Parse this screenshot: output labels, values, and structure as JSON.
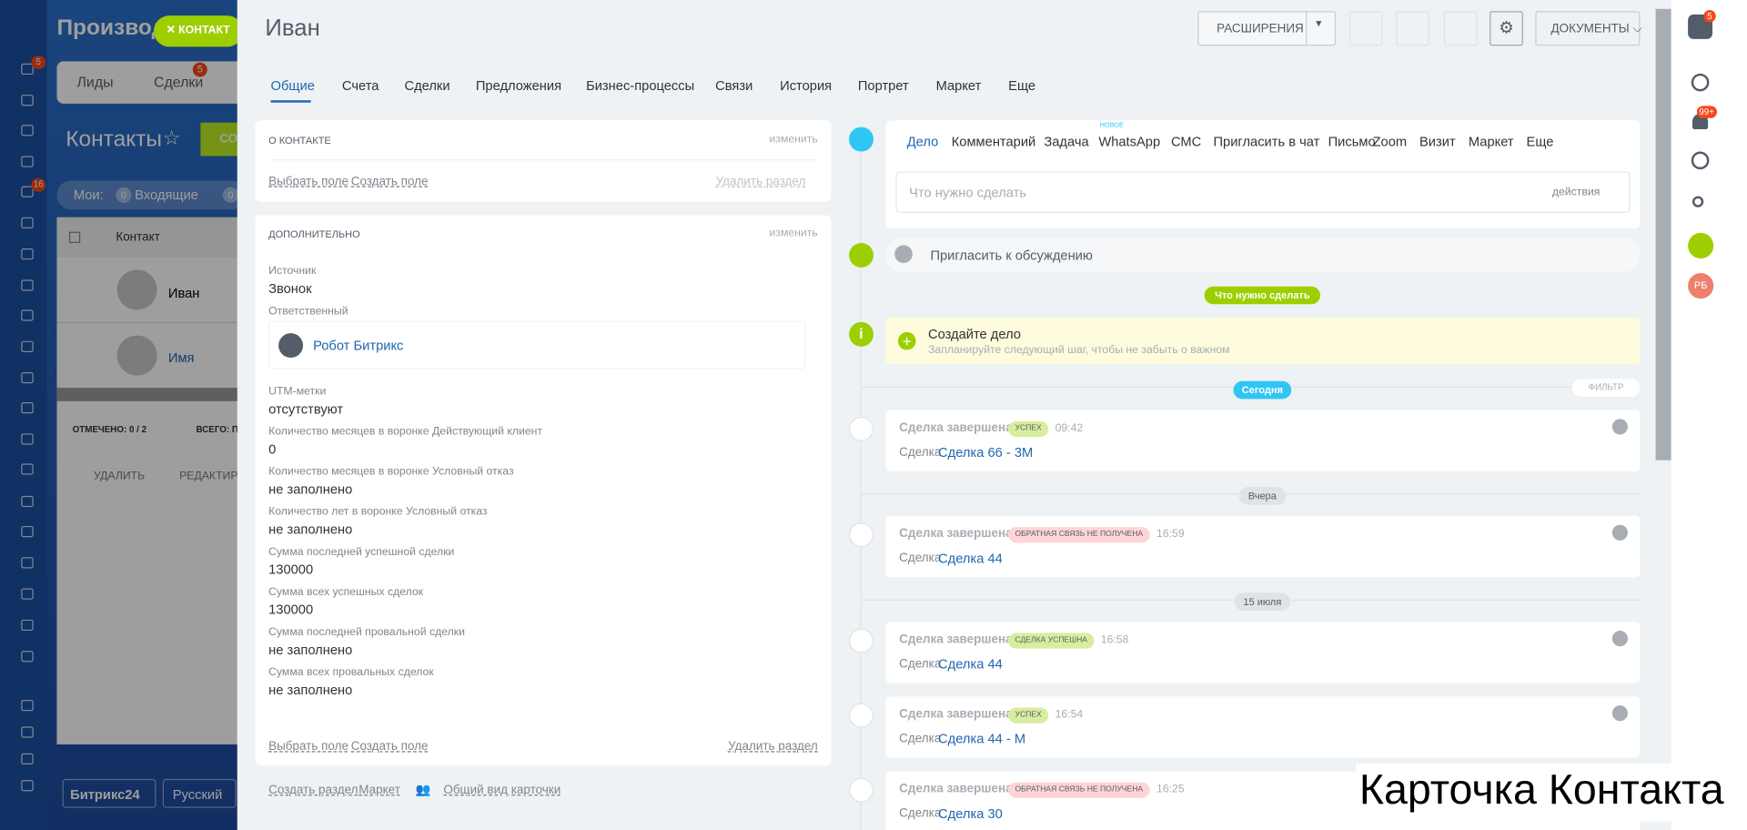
{
  "sidebar": {
    "badges": [
      "5",
      "16"
    ]
  },
  "background": {
    "app_title": "Производ",
    "contact_chip": "КОНТАКТ",
    "tabs": [
      "Лиды",
      "Сделки"
    ],
    "deals_badge": "5",
    "page_title": "Контакты",
    "create_button": "СОЗ",
    "filter_label": "Мои:",
    "filter_count_1": "0",
    "filter_incoming": "Входящие",
    "filter_count_2": "0",
    "column_header": "Контакт",
    "rows": [
      "Иван",
      "Имя"
    ],
    "selected": "ОТМЕЧЕНО: 0 / 2",
    "total": "ВСЕГО: П",
    "delete": "УДАЛИТЬ",
    "edit": "РЕДАКТИРО",
    "brand": "Битрикс24",
    "language": "Русский"
  },
  "card": {
    "title": "Иван",
    "toolbar": {
      "extensions": "РАСШИРЕНИЯ",
      "documents": "ДОКУМЕНТЫ"
    },
    "tabs": [
      "Общие",
      "Счета",
      "Сделки",
      "Предложения",
      "Бизнес-процессы",
      "Связи",
      "История",
      "Портрет",
      "Маркет",
      "Еще"
    ],
    "about": {
      "heading": "О КОНТАКТЕ",
      "edit": "изменить",
      "select_field": "Выбрать поле",
      "create_field": "Создать поле",
      "delete_section": "Удалить раздел"
    },
    "extra": {
      "heading": "ДОПОЛНИТЕЛЬНО",
      "edit": "изменить",
      "fields": [
        {
          "label": "Источник",
          "value": "Звонок"
        },
        {
          "label": "Ответственный",
          "value": "Робот Битрикс"
        },
        {
          "label": "UTM-метки",
          "value": "отсутствуют"
        },
        {
          "label": "Количество месяцев в воронке Действующий клиент",
          "value": "0"
        },
        {
          "label": "Количество месяцев в воронке Условный отказ",
          "value": "не заполнено"
        },
        {
          "label": "Количество лет в воронке Условный отказ",
          "value": "не заполнено"
        },
        {
          "label": "Сумма последней успешной сделки",
          "value": "130000"
        },
        {
          "label": "Сумма всех успешных сделок",
          "value": "130000"
        },
        {
          "label": "Сумма последней провальной сделки",
          "value": "не заполнено"
        },
        {
          "label": "Сумма всех провальных сделок",
          "value": "не заполнено"
        }
      ],
      "select_field": "Выбрать поле",
      "create_field": "Создать поле",
      "delete_section": "Удалить раздел"
    },
    "footer_links": [
      "Создать раздел",
      "Маркет",
      "Общий вид карточки"
    ]
  },
  "timeline": {
    "tabs": [
      "Дело",
      "Комментарий",
      "Задача",
      "WhatsApp",
      "СМС",
      "Пригласить в чат",
      "Письмо",
      "Zoom",
      "Визит",
      "Маркет",
      "Еще"
    ],
    "new_badge": "НОВОЕ",
    "placeholder": "Что нужно сделать",
    "actions": "действия",
    "invite": "Пригласить к обсуждению",
    "todo_label": "Что нужно сделать",
    "todo_title": "Создайте дело",
    "todo_hint": "Запланируйте следующий шаг, чтобы не забыть о важном",
    "filter": "ФИЛЬТР",
    "groups": [
      {
        "date": "Сегодня",
        "items": [
          {
            "title": "Сделка завершена",
            "status": "УСПЕХ",
            "status_color": "#d9ed9f",
            "time": "09:42",
            "prefix": "Сделка",
            "link": "Сделка 66 - 3М"
          }
        ]
      },
      {
        "date": "Вчера",
        "items": [
          {
            "title": "Сделка завершена",
            "status": "ОБРАТНАЯ СВЯЗЬ НЕ ПОЛУЧЕНА",
            "status_color": "#ffd4d4",
            "time": "16:59",
            "prefix": "Сделка",
            "link": "Сделка 44"
          }
        ]
      },
      {
        "date": "15 июля",
        "items": [
          {
            "title": "Сделка завершена",
            "status": "СДЕЛКА УСПЕШНА",
            "status_color": "#d9ed9f",
            "time": "16:58",
            "prefix": "Сделка",
            "link": "Сделка 44"
          },
          {
            "title": "Сделка завершена",
            "status": "УСПЕХ",
            "status_color": "#d9ed9f",
            "time": "16:54",
            "prefix": "Сделка",
            "link": "Сделка 44 - М"
          },
          {
            "title": "Сделка завершена",
            "status": "ОБРАТНАЯ СВЯЗЬ НЕ ПОЛУЧЕНА",
            "status_color": "#ffd4d4",
            "time": "16:25",
            "prefix": "Сделка",
            "link": "Сделка 30"
          }
        ]
      }
    ]
  },
  "right_panel": {
    "badges": [
      "5",
      "99+"
    ],
    "avatar": "РБ"
  },
  "caption": "Карточка Контакта"
}
